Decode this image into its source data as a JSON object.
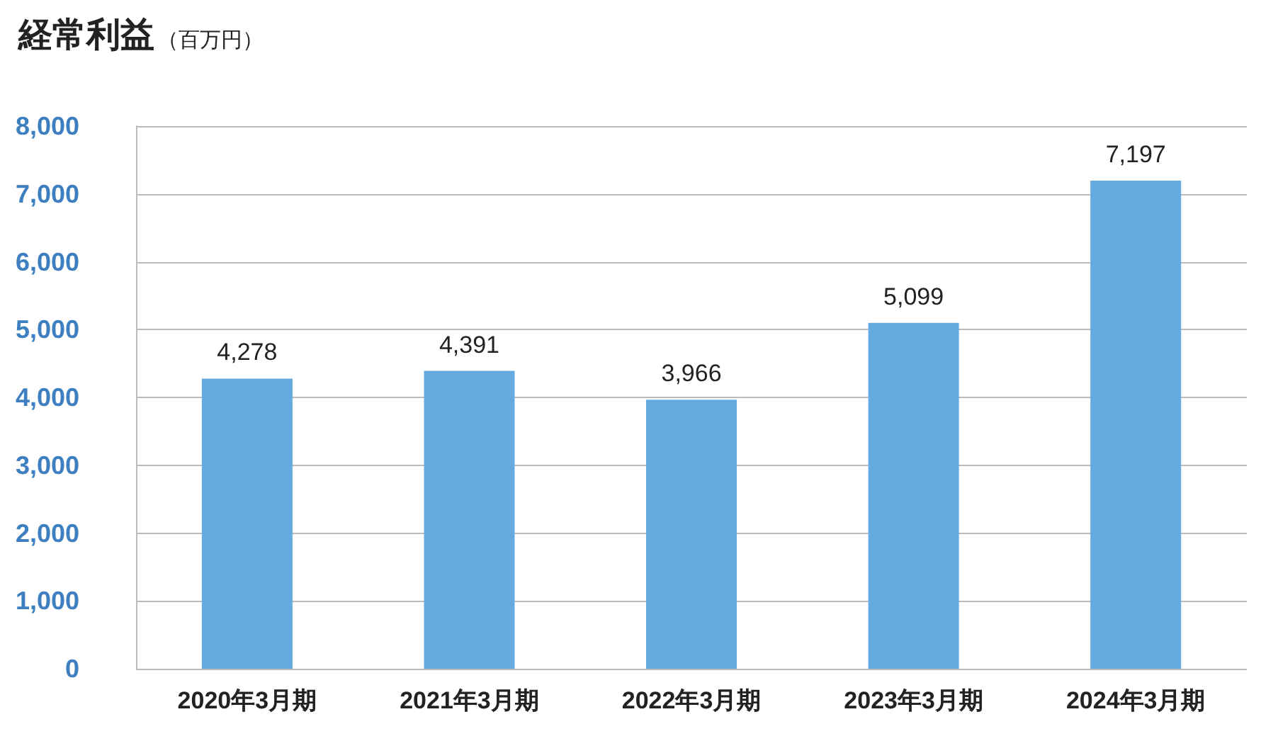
{
  "chart_data": {
    "type": "bar",
    "title": "経常利益",
    "subtitle": "（百万円）",
    "categories": [
      "2020年3月期",
      "2021年3月期",
      "2022年3月期",
      "2023年3月期",
      "2024年3月期"
    ],
    "values": [
      4278,
      4391,
      3966,
      5099,
      7197
    ],
    "value_labels": [
      "4,278",
      "4,391",
      "3,966",
      "5,099",
      "7,197"
    ],
    "color": "#64aadf",
    "ylim": [
      0,
      8000
    ],
    "yticks": [
      0,
      {
        "value": 1000,
        "label": "1,000"
      },
      {
        "value": 2000,
        "label": "2,000"
      },
      {
        "value": 3000,
        "label": "3,000"
      },
      {
        "value": 4000,
        "label": "4,000"
      },
      {
        "value": 5000,
        "label": "5,000"
      },
      {
        "value": 6000,
        "label": "6,000"
      },
      {
        "value": 7000,
        "label": "7,000"
      },
      {
        "value": 8000,
        "label": "8,000"
      }
    ],
    "grid": "y"
  }
}
